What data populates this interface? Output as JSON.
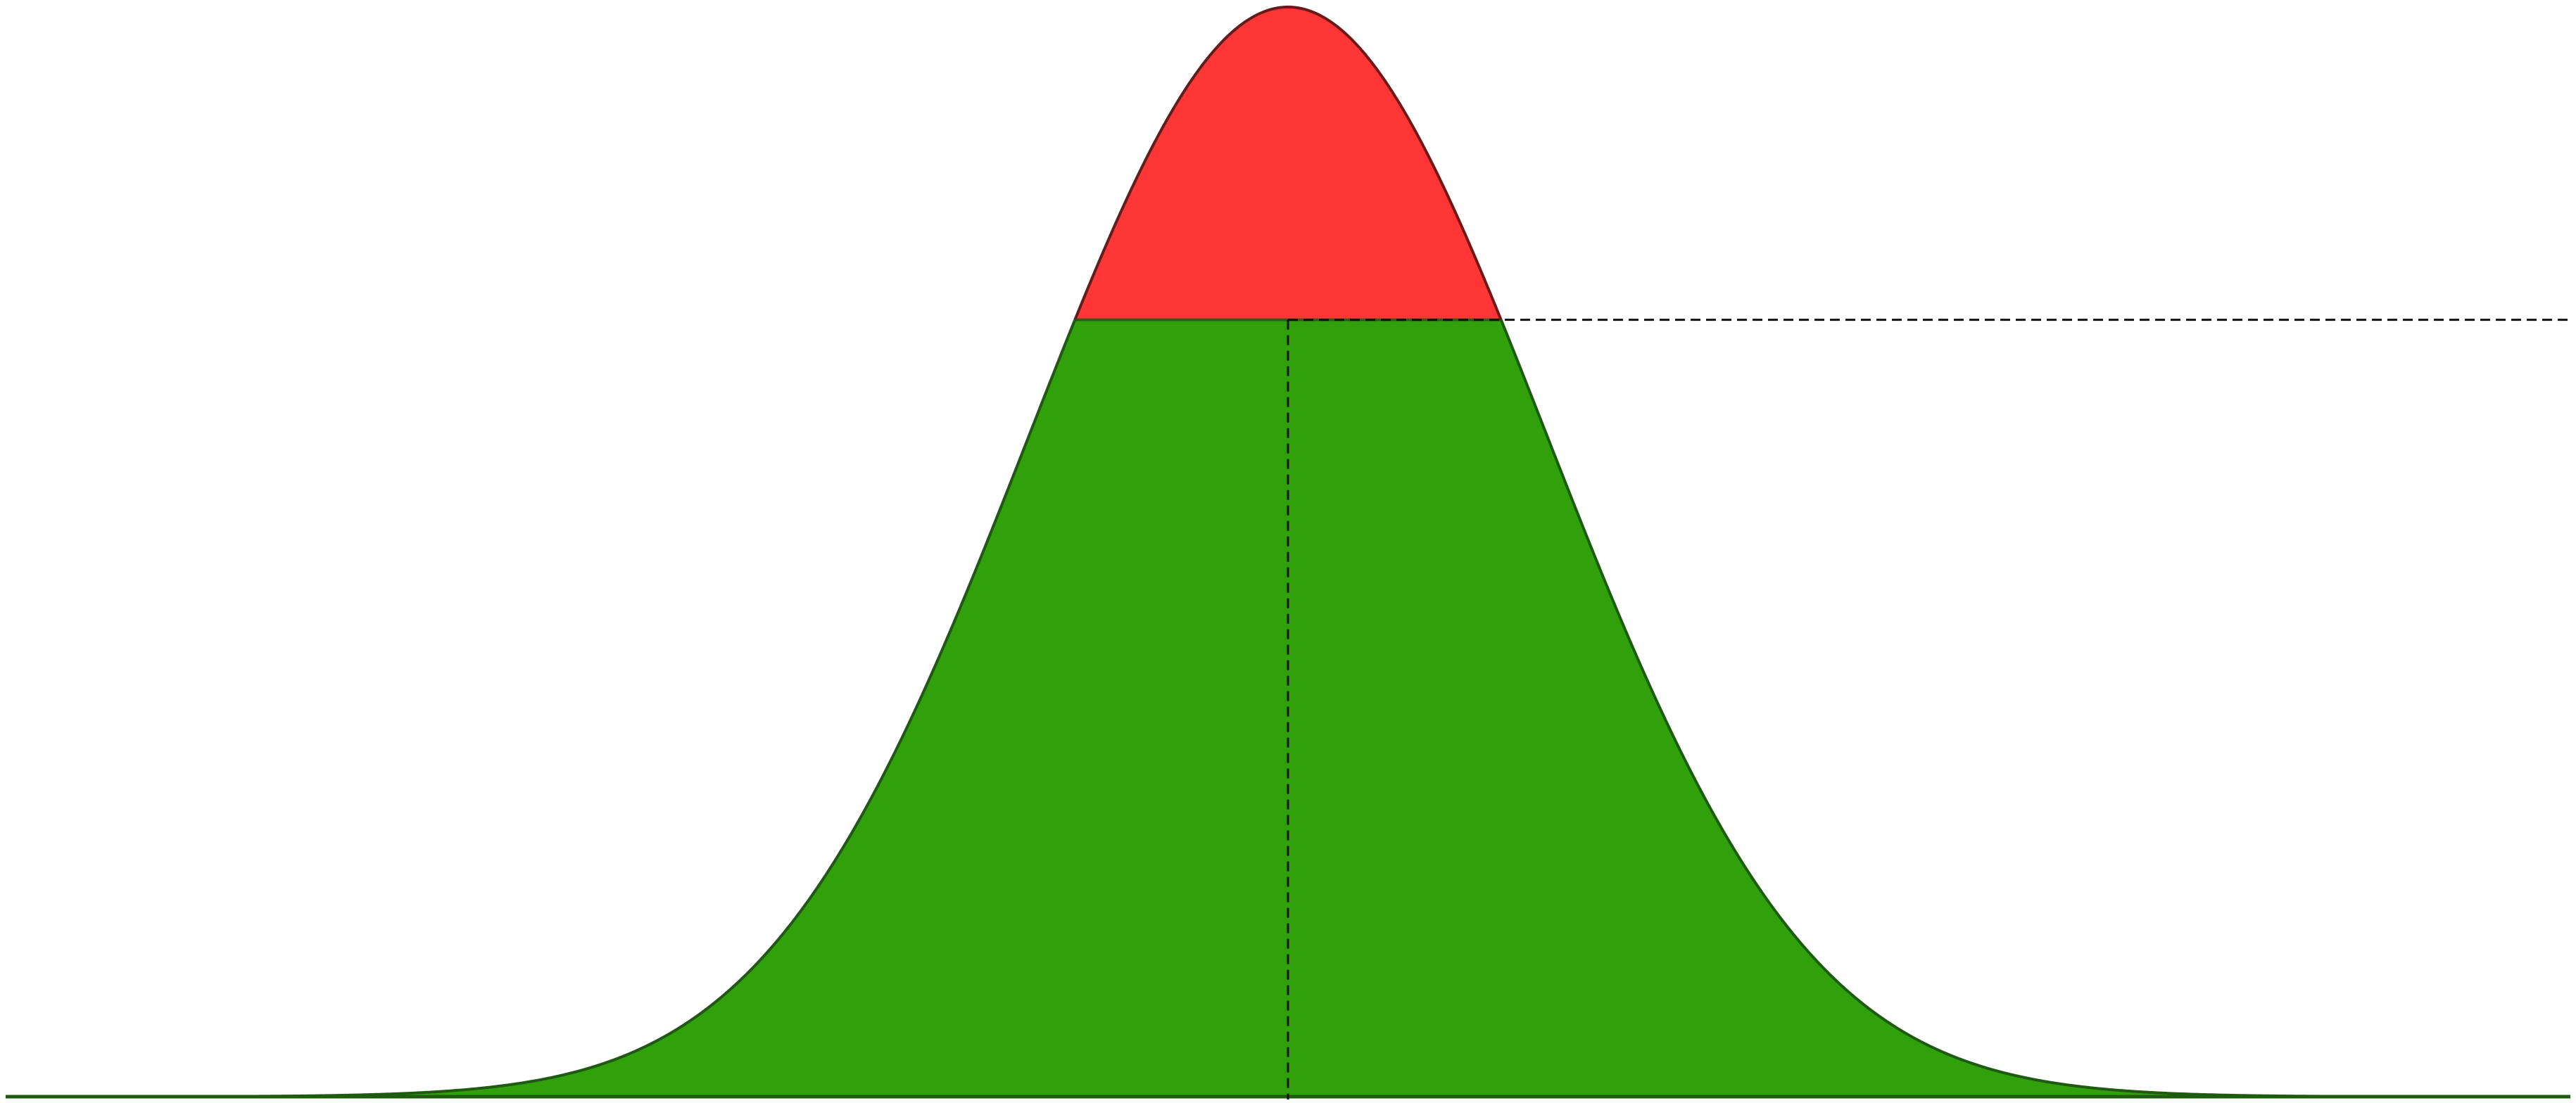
{
  "diagram": {
    "type": "gaussian-threshold",
    "colors": {
      "background": "#ffffff",
      "below_threshold_fill": "#31a10b",
      "above_threshold_fill": "#ff3536",
      "curve_lower_stroke": "#1e5a10",
      "curve_upper_stroke": "#6b1a1a",
      "baseline_stroke": "#1e5a10",
      "guide_stroke": "#111111"
    },
    "threshold_fraction_of_peak": 0.713
  }
}
